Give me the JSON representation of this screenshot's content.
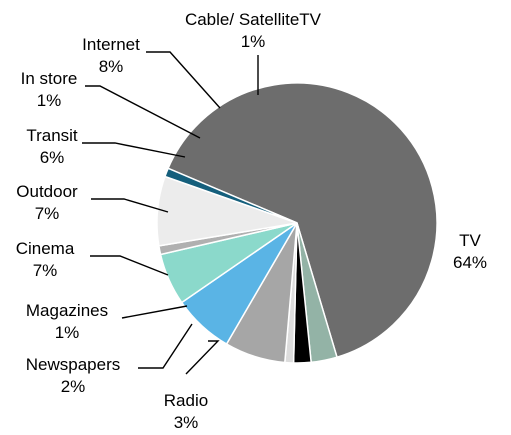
{
  "chart_data": {
    "type": "pie",
    "title": "",
    "slices": [
      {
        "label": "TV",
        "pct_label": "64%",
        "value": 64,
        "color": "#6d6d6d"
      },
      {
        "label": "Radio",
        "pct_label": "3%",
        "value": 3,
        "color": "#93b3a6"
      },
      {
        "label": "Newspapers",
        "pct_label": "2%",
        "value": 2,
        "color": "#000000"
      },
      {
        "label": "Magazines",
        "pct_label": "1%",
        "value": 1,
        "color": "#dcdcdc"
      },
      {
        "label": "Cinema",
        "pct_label": "7%",
        "value": 7,
        "color": "#a6a6a6"
      },
      {
        "label": "Outdoor",
        "pct_label": "7%",
        "value": 7,
        "color": "#5ab4e5"
      },
      {
        "label": "Transit",
        "pct_label": "6%",
        "value": 6,
        "color": "#8bd9cb"
      },
      {
        "label": "In store",
        "pct_label": "1%",
        "value": 1,
        "color": "#b0b0b0"
      },
      {
        "label": "Internet",
        "pct_label": "8%",
        "value": 8,
        "color": "#ececec"
      },
      {
        "label": "Cable/ SatelliteTV",
        "pct_label": "1%",
        "value": 1,
        "color": "#155f7c"
      }
    ],
    "labels_outside": true,
    "legend": "none"
  }
}
